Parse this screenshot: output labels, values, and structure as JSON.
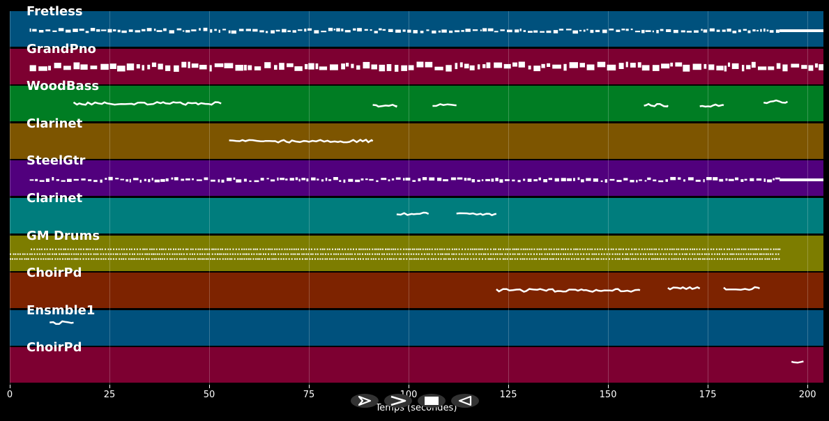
{
  "app": {
    "title": ""
  },
  "tracks": [
    {
      "name": "Fretless",
      "color": "#00517d",
      "notes": [
        [
          5,
          193,
          0.55,
          "dense-small"
        ],
        [
          193,
          204,
          0.55,
          "solid"
        ]
      ]
    },
    {
      "name": "GrandPno",
      "color": "#7d0031",
      "notes": [
        [
          5,
          204,
          0.5,
          "dense-big"
        ]
      ]
    },
    {
      "name": "WoodBass",
      "color": "#007d23",
      "notes": [
        [
          16,
          53,
          0.5,
          "line"
        ],
        [
          91,
          97,
          0.55,
          "line"
        ],
        [
          106,
          112,
          0.55,
          "line"
        ],
        [
          159,
          165,
          0.55,
          "line"
        ],
        [
          173,
          179,
          0.55,
          "line"
        ],
        [
          189,
          195,
          0.45,
          "line"
        ]
      ]
    },
    {
      "name": "Clarinet",
      "color": "#7d5500",
      "notes": [
        [
          55,
          91,
          0.5,
          "line"
        ]
      ]
    },
    {
      "name": "SteelGtr",
      "color": "#51007d",
      "notes": [
        [
          5,
          193,
          0.55,
          "dense-small"
        ],
        [
          193,
          204,
          0.55,
          "solid"
        ]
      ]
    },
    {
      "name": "Clarinet",
      "color": "#007d7d",
      "notes": [
        [
          97,
          105,
          0.45,
          "line"
        ],
        [
          112,
          122,
          0.45,
          "line"
        ]
      ]
    },
    {
      "name": "GM Drums",
      "color": "#7d7d00",
      "notes": [
        [
          0,
          193,
          0.6,
          "drums"
        ]
      ]
    },
    {
      "name": "ChoirPd",
      "color": "#7d2300",
      "notes": [
        [
          122,
          158,
          0.5,
          "line"
        ],
        [
          165,
          173,
          0.45,
          "line"
        ],
        [
          179,
          188,
          0.45,
          "line"
        ]
      ]
    },
    {
      "name": "Ensmble1",
      "color": "#00517d",
      "notes": [
        [
          10,
          16,
          0.35,
          "line"
        ]
      ]
    },
    {
      "name": "ChoirPd",
      "color": "#7d0031",
      "notes": [
        [
          196,
          199,
          0.4,
          "line"
        ]
      ]
    }
  ],
  "axis": {
    "xlabel": "Temps (secondes)",
    "ticks": [
      0,
      25,
      50,
      75,
      100,
      125,
      150,
      175,
      200
    ],
    "xlim": [
      0,
      204
    ]
  },
  "controls": {
    "icons": [
      "play-icon",
      "fast-forward-icon",
      "stop-icon",
      "rewind-icon"
    ]
  }
}
